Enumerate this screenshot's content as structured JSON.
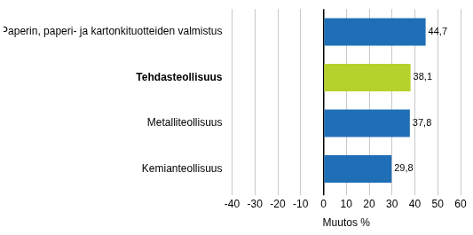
{
  "chart_data": {
    "type": "bar",
    "orientation": "horizontal",
    "categories": [
      "Paperin, paperi- ja kartonkituotteiden valmistus",
      "Tehdasteollisuus",
      "Metalliteollisuus",
      "Kemianteollisuus"
    ],
    "values": [
      44.7,
      38.1,
      37.8,
      29.8
    ],
    "value_labels": [
      "44,7",
      "38,1",
      "37,8",
      "29,8"
    ],
    "colors": [
      "#1f6fb6",
      "#b5d22c",
      "#1f6fb6",
      "#1f6fb6"
    ],
    "xlim": [
      -40,
      60
    ],
    "xticks": [
      -40,
      -30,
      -20,
      -10,
      0,
      10,
      20,
      30,
      40,
      50,
      60
    ],
    "x_label": "Muutos %",
    "grid": true,
    "data_labels": true
  }
}
